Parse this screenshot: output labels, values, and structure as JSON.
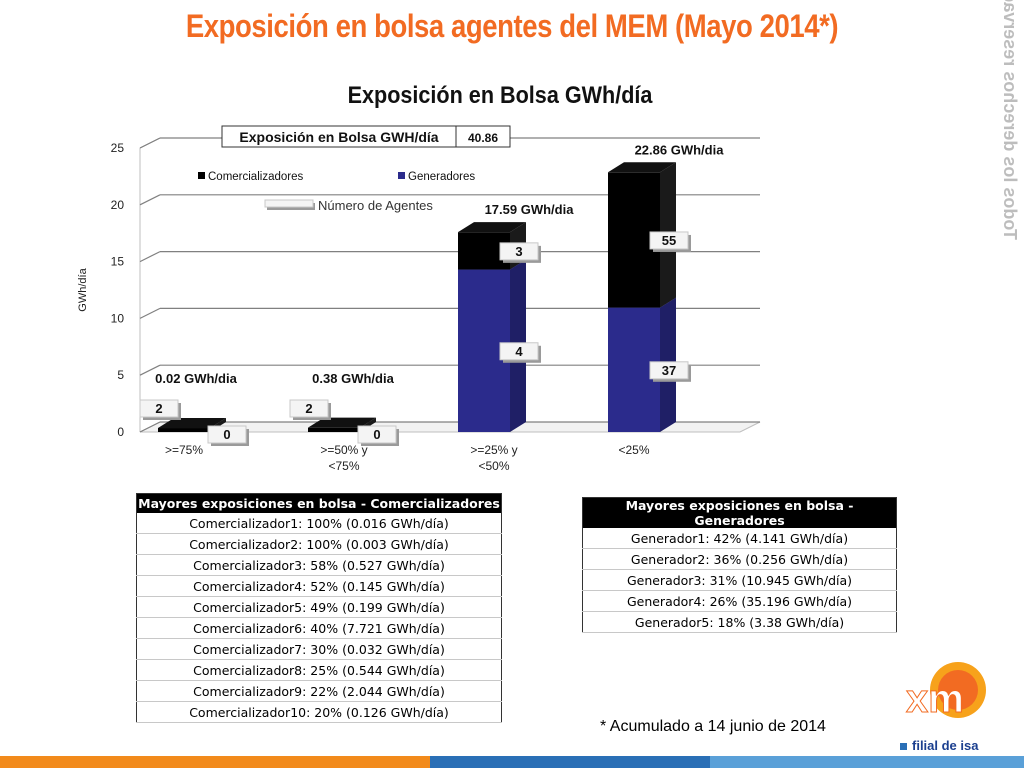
{
  "page": {
    "title": "Exposición en bolsa agentes del MEM (Mayo 2014*)",
    "watermark": "Todos los derechos reservados para XM S.A. E.S.P.",
    "footnote": "* Acumulado a 14 junio  de 2014",
    "logo_text": "filial de isa",
    "colors": {
      "title": "#f26b22",
      "comercializadores": "#000000",
      "generadores": "#2b2b8c",
      "footer_orange": "#f28a1b",
      "footer_blue": "#2a6fb6"
    }
  },
  "chart_data": {
    "type": "bar",
    "stacked": true,
    "title": "Exposición en Bolsa GWh/día",
    "ylabel": "GWh/día",
    "xlabel": "",
    "ylim": [
      0,
      25
    ],
    "yticks": [
      0,
      5,
      10,
      15,
      20,
      25
    ],
    "grid": true,
    "categories": [
      ">=75%",
      ">=50% y <75%",
      ">=25% y <50%",
      "<25%"
    ],
    "series": [
      {
        "name": "Generadores",
        "values": [
          0.0,
          0.0,
          14.3,
          10.95
        ],
        "agent_counts": [
          "0",
          "0",
          "4",
          "37"
        ]
      },
      {
        "name": "Comercializadores",
        "values": [
          0.02,
          0.38,
          3.29,
          11.91
        ],
        "agent_counts": [
          "2",
          "2",
          "3",
          "55"
        ]
      }
    ],
    "total_labels": [
      "0.02 GWh/dia",
      "0.38 GWh/dia",
      "17.59 GWh/dia",
      "22.86 GWh/dia"
    ],
    "legend": {
      "counts_label": "Número de Agentes",
      "placement": "top-left"
    },
    "summary_box": {
      "label": "Exposición en Bolsa GWH/día",
      "value": "40.86"
    }
  },
  "tables": {
    "comercializadores": {
      "header": "Mayores exposiciones en bolsa - Comercializadores",
      "rows": [
        "Comercializador1: 100% (0.016 GWh/día)",
        "Comercializador2: 100% (0.003 GWh/día)",
        "Comercializador3: 58% (0.527 GWh/día)",
        "Comercializador4: 52% (0.145 GWh/día)",
        "Comercializador5: 49% (0.199 GWh/día)",
        "Comercializador6: 40% (7.721 GWh/día)",
        "Comercializador7: 30% (0.032 GWh/día)",
        "Comercializador8: 25% (0.544 GWh/día)",
        "Comercializador9: 22% (2.044 GWh/día)",
        "Comercializador10: 20% (0.126 GWh/día)"
      ]
    },
    "generadores": {
      "header": "Mayores exposiciones en bolsa - Generadores",
      "rows": [
        "Generador1: 42% (4.141 GWh/día)",
        "Generador2: 36% (0.256 GWh/día)",
        "Generador3: 31% (10.945 GWh/día)",
        "Generador4: 26% (35.196 GWh/día)",
        "Generador5: 18% (3.38 GWh/día)"
      ]
    }
  }
}
